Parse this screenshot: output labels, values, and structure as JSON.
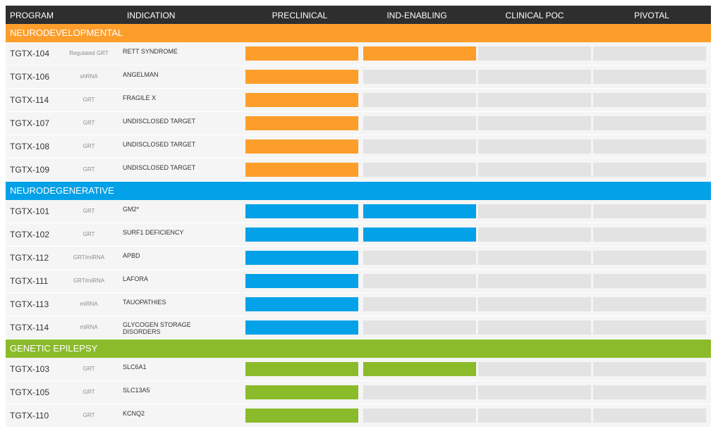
{
  "chart_data": {
    "type": "table",
    "columns": [
      "PROGRAM",
      "INDICATION",
      "PRECLINICAL",
      "IND-ENABLING",
      "CLINICAL POC",
      "PIVOTAL"
    ],
    "stages": [
      "PRECLINICAL",
      "IND-ENABLING",
      "CLINICAL POC",
      "PIVOTAL"
    ],
    "groups": [
      {
        "name": "NEURODEVELOPMENTAL",
        "color": "#fd9e2b",
        "rows": [
          {
            "program": "TGTX-104",
            "modality": "Regulated GRT",
            "indication": "RETT SYNDROME",
            "stages_completed": 2
          },
          {
            "program": "TGTX-106",
            "modality": "shRNA",
            "indication": "ANGELMAN",
            "stages_completed": 1
          },
          {
            "program": "TGTX-114",
            "modality": "GRT",
            "indication": "FRAGILE X",
            "stages_completed": 1
          },
          {
            "program": "TGTX-107",
            "modality": "GRT",
            "indication": "UNDISCLOSED TARGET",
            "stages_completed": 1
          },
          {
            "program": "TGTX-108",
            "modality": "GRT",
            "indication": "UNDISCLOSED TARGET",
            "stages_completed": 1
          },
          {
            "program": "TGTX-109",
            "modality": "GRT",
            "indication": "UNDISCLOSED TARGET",
            "stages_completed": 1
          }
        ]
      },
      {
        "name": "NEURODEGENERATIVE",
        "color": "#03a1e8",
        "rows": [
          {
            "program": "TGTX-101",
            "modality": "GRT",
            "indication": "GM2*",
            "stages_completed": 2
          },
          {
            "program": "TGTX-102",
            "modality": "GRT",
            "indication": "SURF1 DEFICIENCY",
            "stages_completed": 2
          },
          {
            "program": "TGTX-112",
            "modality": "GRT/miRNA",
            "indication": "APBD",
            "stages_completed": 1
          },
          {
            "program": "TGTX-111",
            "modality": "GRT/miRNA",
            "indication": "LAFORA",
            "stages_completed": 1
          },
          {
            "program": "TGTX-113",
            "modality": "miRNA",
            "indication": "TAUOPATHIES",
            "stages_completed": 1
          },
          {
            "program": "TGTX-114",
            "modality": "miRNA",
            "indication": "GLYCOGEN STORAGE DISORDERS",
            "stages_completed": 1
          }
        ]
      },
      {
        "name": "GENETIC EPILEPSY",
        "color": "#8bbb2b",
        "rows": [
          {
            "program": "TGTX-103",
            "modality": "GRT",
            "indication": "SLC6A1",
            "stages_completed": 2
          },
          {
            "program": "TGTX-105",
            "modality": "GRT",
            "indication": "SLC13A5",
            "stages_completed": 1
          },
          {
            "program": "TGTX-110",
            "modality": "GRT",
            "indication": "KCNQ2",
            "stages_completed": 1
          }
        ]
      }
    ]
  },
  "colors": {
    "header_bg": "#2e2e2e",
    "row_bg": "#f5f5f5",
    "empty_cell": "#e3e3e3"
  }
}
